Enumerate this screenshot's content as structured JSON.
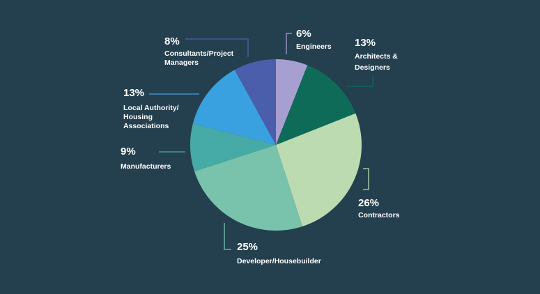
{
  "colors": {
    "background": "#243f4e"
  },
  "chart_data": {
    "type": "pie",
    "title": "",
    "slices": [
      {
        "label": "Engineers",
        "percent_label": "6%",
        "value": 6,
        "color": "#a89fd1"
      },
      {
        "label": "Architects & Designers",
        "percent_label": "13%",
        "value": 13,
        "color": "#0e6b58"
      },
      {
        "label": "Contractors",
        "percent_label": "26%",
        "value": 26,
        "color": "#bddbb0"
      },
      {
        "label": "Developer/Housebuilder",
        "percent_label": "25%",
        "value": 25,
        "color": "#79c3ac"
      },
      {
        "label": "Manufacturers",
        "percent_label": "9%",
        "value": 9,
        "color": "#46aaa6"
      },
      {
        "label": "Local Authority/ Housing Associations",
        "percent_label": "13%",
        "value": 13,
        "color": "#3aa1e0"
      },
      {
        "label": "Consultants/Project Managers",
        "percent_label": "8%",
        "value": 8,
        "color": "#4a5eab"
      }
    ]
  }
}
